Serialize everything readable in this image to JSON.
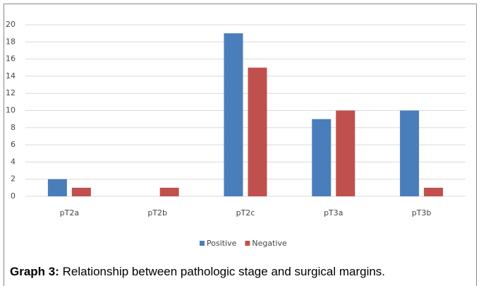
{
  "chart_data": {
    "type": "bar",
    "caption_label": "Graph 3:",
    "caption": " Relationship between pathologic stage and surgical margins.",
    "categories": [
      "pT2a",
      "pT2b",
      "pT2c",
      "pT3a",
      "pT3b"
    ],
    "series": [
      {
        "name": "Positive",
        "color": "#4a7ebb",
        "values": [
          2,
          0,
          19,
          9,
          10
        ]
      },
      {
        "name": "Negative",
        "color": "#c0504d",
        "values": [
          1,
          1,
          15,
          10,
          1
        ]
      }
    ],
    "ylim": [
      0,
      20
    ],
    "yticks": [
      0,
      2,
      4,
      6,
      8,
      10,
      12,
      14,
      16,
      18,
      20
    ],
    "grid": true,
    "legend": "bottom"
  }
}
